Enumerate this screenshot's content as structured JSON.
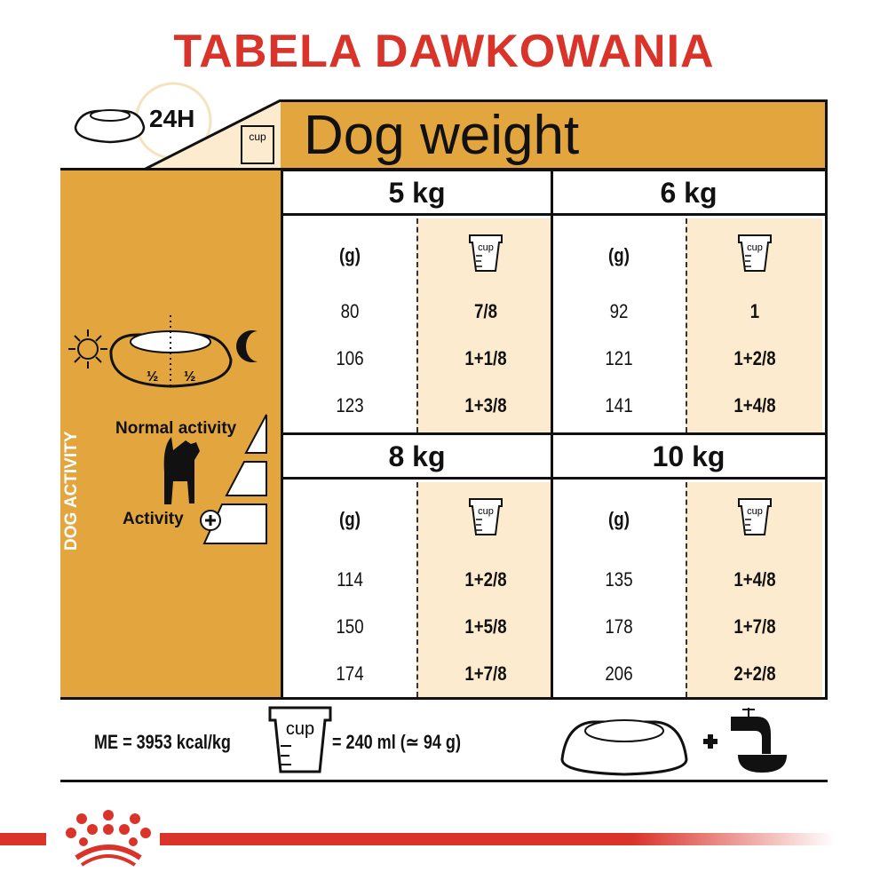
{
  "title": "TABELA DAWKOWANIA",
  "header": {
    "period": "24H",
    "dog_weight_label": "Dog weight",
    "cup_icon_text": "cup"
  },
  "left_panel": {
    "vertical_label": "DOG ACTIVITY",
    "meal_split": [
      "½",
      "½"
    ],
    "normal_activity": "Normal activity",
    "activity": "Activity"
  },
  "columns": {
    "grams": "(g)",
    "cup": "cup"
  },
  "blocks": [
    {
      "weight": "5 kg",
      "grams": [
        "80",
        "106",
        "123"
      ],
      "cups": [
        "7/8",
        "1+1/8",
        "1+3/8"
      ]
    },
    {
      "weight": "6 kg",
      "grams": [
        "92",
        "121",
        "141"
      ],
      "cups": [
        "1",
        "1+2/8",
        "1+4/8"
      ]
    },
    {
      "weight": "8 kg",
      "grams": [
        "114",
        "150",
        "174"
      ],
      "cups": [
        "1+2/8",
        "1+5/8",
        "1+7/8"
      ]
    },
    {
      "weight": "10 kg",
      "grams": [
        "135",
        "178",
        "206"
      ],
      "cups": [
        "1+4/8",
        "1+7/8",
        "2+2/8"
      ]
    }
  ],
  "footer": {
    "energy": "ME = 3953 kcal/kg",
    "cup_equiv": "= 240 ml (≃ 94 g)",
    "plus": "+"
  },
  "colors": {
    "accent_orange": "#e3a63f",
    "cream": "#fdebd0",
    "brand_red": "#d9332a"
  }
}
